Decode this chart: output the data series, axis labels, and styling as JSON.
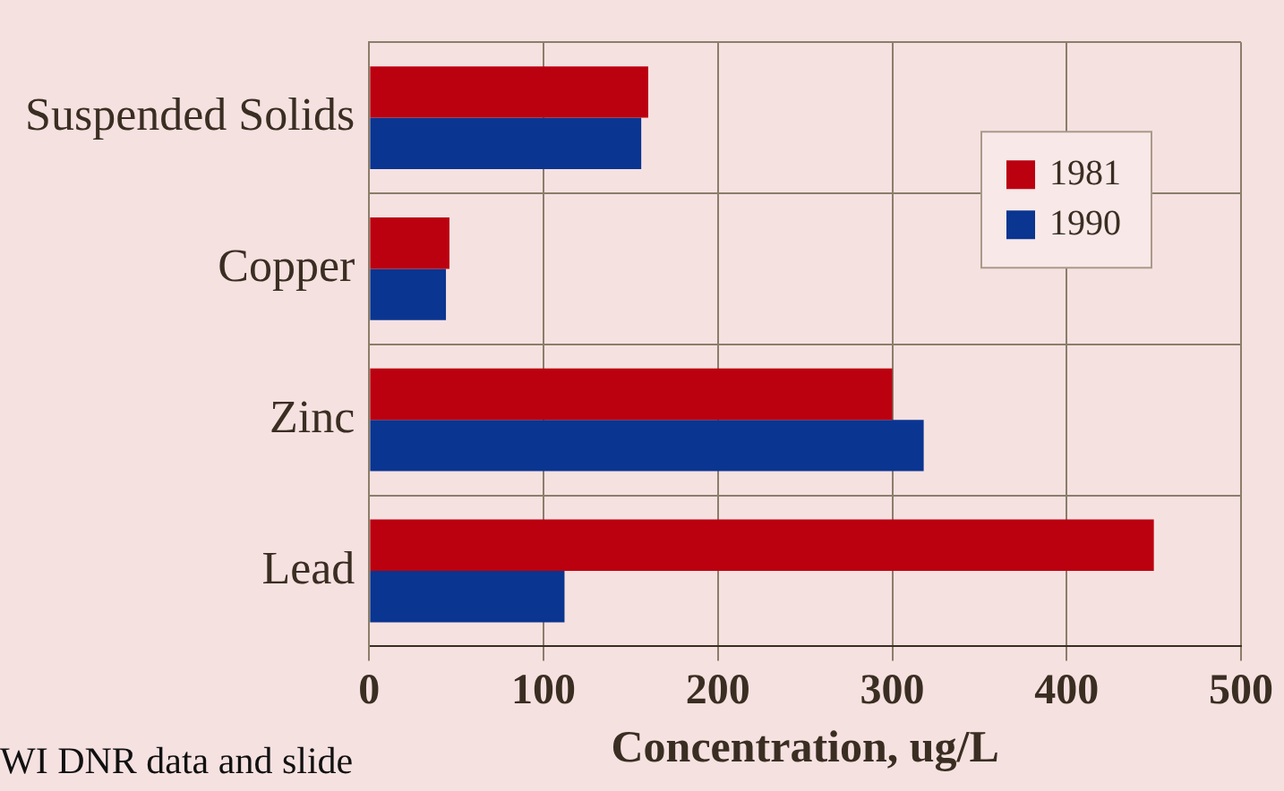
{
  "chart_data": {
    "type": "bar",
    "orientation": "horizontal",
    "categories": [
      "Suspended Solids",
      "Copper",
      "Zinc",
      "Lead"
    ],
    "series": [
      {
        "name": "1981",
        "color": "#bb0010",
        "values": [
          160,
          46,
          300,
          450
        ]
      },
      {
        "name": "1990",
        "color": "#0a3590",
        "values": [
          156,
          44,
          318,
          112
        ]
      }
    ],
    "xlabel": "Concentration, ug/L",
    "xlim": [
      0,
      500
    ],
    "xticks": [
      0,
      100,
      200,
      300,
      400,
      500
    ],
    "grid": true,
    "legend": "top right",
    "annotations": [
      "WI DNR data and slide"
    ]
  }
}
